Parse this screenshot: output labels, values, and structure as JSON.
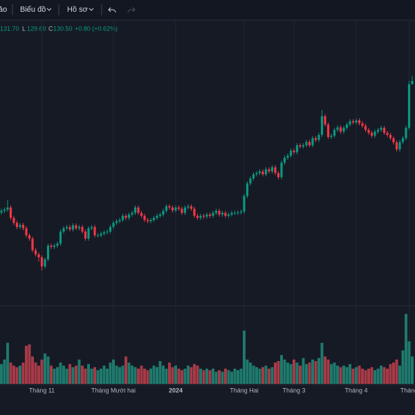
{
  "toolbar": {
    "items": [
      "ảo",
      "Biểu đồ",
      "Hồ sơ"
    ]
  },
  "readout": {
    "high": "131.70",
    "low_prefix": "L",
    "low": "129.60",
    "close_prefix": "C",
    "close": "130.50",
    "change": "+0.80 (+0.62%)"
  },
  "chart_data": {
    "type": "candlestick",
    "open": [
      98.8,
      99.2,
      99.5,
      100.0,
      97.5,
      96.3,
      95.3,
      95.8,
      95.0,
      93.3,
      92.5,
      89.7,
      88.7,
      88.0,
      85.8,
      87.5,
      90.8,
      90.5,
      90.8,
      91.3,
      94.2,
      95.0,
      95.3,
      94.7,
      95.7,
      95.0,
      95.3,
      94.2,
      92.5,
      95.0,
      95.3,
      93.3,
      93.3,
      93.7,
      94.0,
      94.2,
      95.3,
      96.3,
      96.7,
      97.0,
      98.0,
      97.5,
      98.3,
      98.7,
      100.0,
      98.7,
      98.0,
      97.0,
      96.7,
      97.0,
      97.5,
      98.0,
      98.3,
      99.2,
      100.3,
      100.0,
      99.3,
      100.0,
      99.7,
      98.7,
      100.0,
      100.3,
      99.7,
      98.0,
      97.5,
      98.0,
      97.8,
      98.3,
      98.0,
      98.7,
      99.2,
      98.3,
      98.7,
      98.0,
      98.3,
      98.7,
      98.7,
      98.8,
      99.0,
      102.8,
      105.8,
      107.0,
      108.0,
      108.3,
      108.7,
      108.0,
      109.2,
      108.7,
      109.7,
      108.3,
      107.3,
      110.8,
      112.0,
      112.5,
      113.7,
      113.3,
      115.0,
      114.7,
      115.0,
      115.8,
      115.0,
      116.7,
      116.3,
      117.5,
      122.0,
      120.0,
      117.0,
      117.3,
      118.7,
      119.3,
      118.3,
      119.2,
      120.0,
      120.8,
      120.5,
      121.0,
      120.3,
      119.7,
      118.7,
      118.0,
      117.3,
      118.3,
      118.7,
      119.2,
      118.0,
      117.5,
      116.7,
      115.7,
      114.0,
      115.8,
      116.7,
      119.2,
      129.7
    ],
    "high": [
      99.7,
      100.0,
      101.8,
      100.5,
      98.0,
      96.8,
      96.3,
      96.3,
      95.5,
      93.8,
      93.0,
      90.2,
      89.2,
      88.5,
      88.0,
      91.3,
      91.3,
      91.3,
      91.8,
      94.7,
      95.5,
      95.8,
      95.8,
      96.2,
      96.2,
      95.8,
      95.8,
      94.7,
      95.5,
      95.8,
      95.8,
      93.8,
      94.2,
      94.5,
      94.7,
      95.8,
      96.8,
      97.2,
      97.5,
      98.5,
      98.5,
      98.8,
      99.2,
      100.5,
      100.5,
      99.2,
      98.5,
      97.5,
      97.5,
      98.0,
      98.5,
      98.8,
      99.7,
      100.8,
      100.8,
      100.5,
      100.5,
      100.5,
      100.2,
      100.5,
      100.8,
      100.8,
      100.2,
      98.5,
      98.5,
      98.5,
      98.8,
      98.8,
      99.2,
      99.7,
      99.7,
      99.2,
      99.2,
      98.8,
      99.2,
      99.2,
      99.3,
      99.5,
      103.3,
      106.3,
      107.5,
      108.5,
      108.8,
      109.2,
      109.2,
      109.7,
      109.7,
      110.2,
      110.2,
      108.8,
      111.3,
      112.5,
      113.0,
      114.2,
      114.2,
      115.5,
      115.5,
      115.5,
      116.3,
      116.3,
      117.2,
      117.2,
      118.0,
      123.5,
      122.5,
      120.5,
      117.8,
      119.2,
      119.8,
      119.8,
      119.7,
      120.5,
      121.3,
      121.3,
      121.5,
      121.5,
      120.8,
      120.2,
      119.2,
      118.5,
      118.8,
      119.2,
      119.7,
      119.7,
      118.5,
      118.0,
      117.2,
      116.2,
      116.3,
      117.2,
      119.7,
      130.5,
      131.7
    ],
    "low": [
      98.3,
      98.7,
      99.0,
      97.0,
      95.8,
      94.8,
      94.8,
      94.5,
      92.8,
      92.0,
      89.2,
      88.2,
      87.0,
      84.8,
      85.3,
      87.0,
      90.0,
      90.0,
      90.3,
      90.8,
      93.7,
      94.5,
      94.2,
      94.2,
      94.5,
      94.5,
      93.7,
      92.0,
      92.0,
      94.5,
      92.8,
      92.8,
      92.8,
      93.2,
      93.5,
      93.7,
      94.8,
      95.8,
      96.2,
      96.5,
      97.0,
      97.0,
      97.8,
      98.2,
      98.2,
      97.5,
      96.5,
      96.2,
      96.2,
      96.5,
      97.0,
      97.5,
      97.8,
      98.7,
      99.5,
      98.8,
      98.8,
      99.2,
      98.2,
      98.2,
      99.5,
      99.2,
      97.5,
      97.0,
      97.0,
      97.3,
      97.3,
      97.5,
      97.5,
      98.2,
      97.8,
      97.8,
      97.5,
      97.5,
      97.8,
      98.2,
      98.2,
      98.3,
      98.5,
      102.3,
      105.3,
      106.5,
      107.5,
      107.8,
      107.5,
      107.5,
      108.2,
      108.2,
      107.8,
      106.8,
      106.8,
      110.3,
      111.5,
      112.0,
      112.8,
      112.8,
      114.2,
      114.2,
      114.5,
      114.5,
      114.5,
      115.8,
      115.8,
      117.0,
      119.5,
      116.5,
      116.5,
      116.8,
      118.2,
      117.8,
      117.8,
      118.7,
      119.5,
      120.0,
      120.0,
      119.8,
      119.2,
      118.2,
      117.5,
      116.8,
      116.8,
      117.8,
      118.2,
      117.5,
      117.0,
      116.2,
      115.2,
      113.5,
      113.5,
      115.3,
      116.2,
      118.7,
      129.6
    ],
    "close": [
      99.2,
      99.5,
      100.0,
      97.5,
      96.3,
      95.3,
      95.8,
      95.0,
      93.3,
      92.5,
      89.7,
      88.7,
      88.0,
      85.8,
      87.5,
      90.8,
      90.5,
      90.8,
      91.3,
      94.2,
      95.0,
      95.3,
      94.7,
      95.7,
      95.0,
      95.3,
      94.2,
      92.5,
      95.0,
      95.3,
      93.3,
      93.3,
      93.7,
      94.0,
      94.2,
      95.3,
      96.3,
      96.7,
      97.0,
      98.0,
      97.5,
      98.3,
      98.7,
      100.0,
      98.7,
      98.0,
      97.0,
      96.7,
      97.0,
      97.5,
      98.0,
      98.3,
      99.2,
      100.3,
      100.0,
      99.3,
      100.0,
      99.7,
      98.7,
      100.0,
      100.3,
      99.7,
      98.0,
      97.5,
      98.0,
      97.8,
      98.3,
      98.0,
      98.7,
      99.2,
      98.3,
      98.7,
      98.0,
      98.3,
      98.7,
      98.7,
      98.8,
      99.0,
      102.8,
      105.8,
      107.0,
      108.0,
      108.3,
      108.7,
      108.0,
      109.2,
      108.7,
      109.7,
      108.3,
      107.3,
      110.8,
      112.0,
      112.5,
      113.7,
      113.3,
      115.0,
      114.7,
      115.0,
      115.8,
      115.0,
      116.7,
      116.3,
      117.5,
      122.0,
      120.0,
      117.0,
      117.3,
      118.7,
      119.3,
      118.3,
      119.2,
      120.0,
      120.8,
      120.5,
      121.0,
      120.3,
      119.7,
      118.7,
      118.0,
      117.3,
      118.3,
      118.7,
      119.2,
      118.0,
      117.5,
      116.7,
      115.7,
      114.0,
      115.8,
      116.7,
      119.2,
      129.7,
      130.5
    ],
    "volume": [
      6.5,
      8,
      13.5,
      7,
      6,
      5.5,
      6,
      7,
      12.5,
      13,
      9,
      7,
      6,
      8,
      10,
      9,
      6,
      5,
      5.5,
      7,
      6,
      5,
      6.5,
      5.5,
      6,
      8,
      6,
      5,
      6.5,
      5,
      5.5,
      4.5,
      5,
      6,
      5,
      7,
      8,
      6,
      5.5,
      6,
      9,
      7,
      6,
      5.5,
      5,
      6,
      5,
      4.5,
      5,
      6,
      5.5,
      7.5,
      6,
      5,
      7,
      5.5,
      6,
      5,
      4.5,
      5,
      6,
      5.5,
      6.5,
      6,
      5,
      4.5,
      5,
      4.5,
      5,
      4,
      4.5,
      4,
      5,
      4.5,
      4,
      5,
      4.5,
      5,
      17.5,
      8,
      7,
      6,
      5.5,
      5,
      5.5,
      6,
      5,
      5.5,
      7,
      7.5,
      9.5,
      8,
      7,
      6.5,
      8,
      7,
      6,
      8.5,
      6.5,
      7,
      8,
      7.5,
      8.5,
      13.5,
      9,
      8,
      6.5,
      7,
      6,
      5.5,
      6,
      5.5,
      6.5,
      5,
      5.5,
      6,
      5,
      4.5,
      5,
      5.5,
      4.5,
      5,
      6,
      5.5,
      5,
      6.5,
      7,
      8,
      6,
      11,
      23,
      14,
      9
    ],
    "up_color": "#089981",
    "down_color": "#f23645",
    "volume_up_color": "#1e7a6d",
    "volume_down_color": "#a83a47",
    "ylim": [
      77,
      145
    ],
    "volume_ylim": [
      0,
      25
    ],
    "xticks": [
      {
        "value": 13,
        "label": "Tháng 11"
      },
      {
        "value": 36,
        "label": "Tháng Mười hai"
      },
      {
        "value": 56,
        "label": "2024"
      },
      {
        "value": 78,
        "label": "Tháng Hai"
      },
      {
        "value": 94,
        "label": "Tháng 3"
      },
      {
        "value": 114,
        "label": "Tháng 4"
      },
      {
        "value": 131,
        "label": "Tháng"
      }
    ],
    "grid": true
  }
}
